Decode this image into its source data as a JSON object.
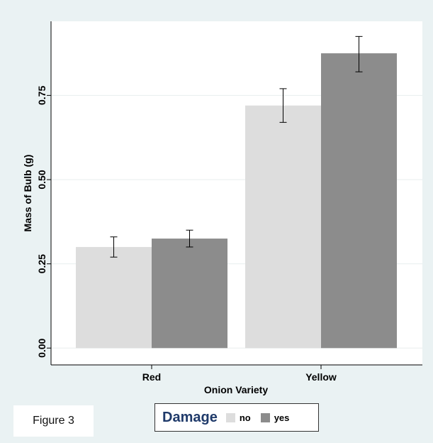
{
  "chart_data": {
    "type": "bar",
    "categories": [
      "Red",
      "Yellow"
    ],
    "series": [
      {
        "name": "no",
        "values": [
          0.3,
          0.72
        ],
        "error_low": [
          0.27,
          0.67
        ],
        "error_high": [
          0.33,
          0.77
        ],
        "color": "#dddddd"
      },
      {
        "name": "yes",
        "values": [
          0.325,
          0.875
        ],
        "error_low": [
          0.3,
          0.82
        ],
        "error_high": [
          0.35,
          0.925
        ],
        "color": "#8c8c8c"
      }
    ],
    "xlabel": "Onion Variety",
    "ylabel": "Mass of Bulb (g)",
    "ylim": [
      -0.05,
      0.97
    ],
    "yticks": [
      0.0,
      0.25,
      0.5,
      0.75
    ],
    "ytick_labels": [
      "0.00",
      "0.25",
      "0.50",
      "0.75"
    ],
    "grid": true,
    "legend": {
      "title": "Damage",
      "placement": "bottom"
    }
  },
  "figure_label": "Figure 3"
}
